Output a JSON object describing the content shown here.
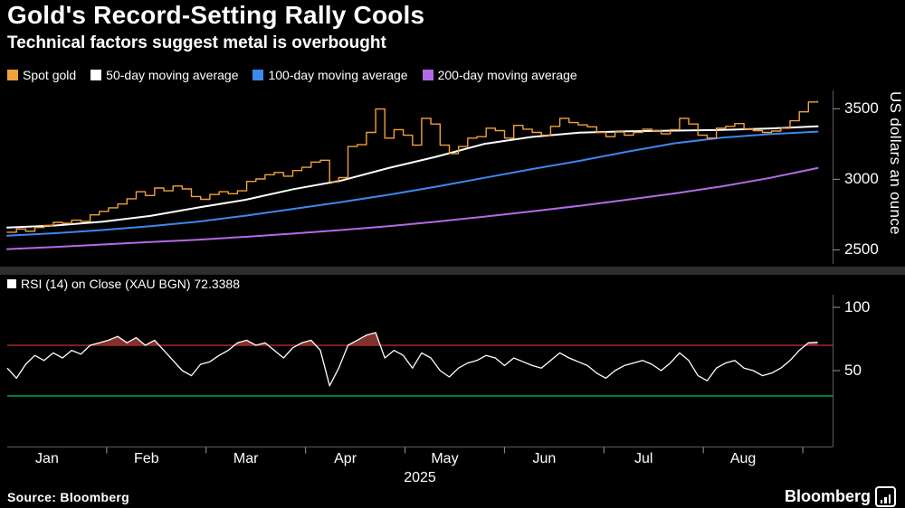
{
  "header": {
    "title": "Gold's Record-Setting Rally Cools",
    "subtitle": "Technical factors suggest metal is overbought"
  },
  "legend": {
    "items": [
      {
        "label": "Spot gold",
        "color": "#f2a13c"
      },
      {
        "label": "50-day moving average",
        "color": "#ffffff"
      },
      {
        "label": "100-day moving average",
        "color": "#3d87f0"
      },
      {
        "label": "200-day moving average",
        "color": "#b36ae8"
      }
    ]
  },
  "rsi_legend": {
    "marker_color": "#ffffff",
    "label": "RSI (14)  on Close (XAU BGN) 72.3388"
  },
  "footer": {
    "source": "Source: Bloomberg",
    "brand": "Bloomberg"
  },
  "chart_data": [
    {
      "type": "line",
      "title": "Gold price and moving averages",
      "ylabel": "US dollars an ounce",
      "xlabel": "2025",
      "xlim_months": [
        0,
        8.3
      ],
      "ylim": [
        2400,
        3630
      ],
      "yticks": [
        3500,
        3000,
        2500
      ],
      "xticklabels": [
        "Jan",
        "Feb",
        "Mar",
        "Apr",
        "May",
        "Jun",
        "Jul",
        "Aug"
      ],
      "grid": false,
      "legend_position": "top",
      "series": [
        {
          "name": "Spot gold",
          "color": "#f2a13c",
          "style": "step",
          "x_span": [
            0,
            8.15
          ],
          "values": [
            2625,
            2648,
            2632,
            2658,
            2672,
            2695,
            2688,
            2710,
            2702,
            2748,
            2772,
            2798,
            2825,
            2862,
            2912,
            2885,
            2938,
            2918,
            2952,
            2932,
            2878,
            2858,
            2892,
            2912,
            2898,
            2918,
            2985,
            3002,
            3032,
            3048,
            3022,
            3062,
            3085,
            3122,
            3135,
            2982,
            3012,
            3232,
            3245,
            3332,
            3498,
            3292,
            3352,
            3312,
            3242,
            3432,
            3392,
            3242,
            3182,
            3232,
            3292,
            3302,
            3362,
            3345,
            3292,
            3382,
            3355,
            3332,
            3312,
            3375,
            3432,
            3402,
            3385,
            3372,
            3332,
            3302,
            3335,
            3312,
            3332,
            3355,
            3345,
            3322,
            3352,
            3432,
            3392,
            3312,
            3292,
            3362,
            3375,
            3395,
            3355,
            3345,
            3332,
            3342,
            3362,
            3415,
            3478,
            3548,
            3552
          ]
        },
        {
          "name": "50-day moving average",
          "color": "#ffffff",
          "style": "line",
          "x_span": [
            0,
            8.15
          ],
          "values": [
            2658,
            2672,
            2700,
            2740,
            2800,
            2855,
            2930,
            2990,
            3080,
            3160,
            3250,
            3300,
            3330,
            3340,
            3345,
            3350,
            3360,
            3375
          ]
        },
        {
          "name": "100-day moving average",
          "color": "#3d87f0",
          "style": "line",
          "x_span": [
            0,
            8.15
          ],
          "values": [
            2600,
            2618,
            2640,
            2668,
            2700,
            2742,
            2790,
            2838,
            2890,
            2948,
            3010,
            3072,
            3130,
            3195,
            3255,
            3295,
            3320,
            3338
          ]
        },
        {
          "name": "200-day moving average",
          "color": "#b36ae8",
          "style": "line",
          "x_span": [
            0,
            8.15
          ],
          "values": [
            2505,
            2520,
            2538,
            2555,
            2572,
            2592,
            2615,
            2640,
            2668,
            2700,
            2735,
            2772,
            2812,
            2855,
            2900,
            2950,
            3010,
            3080
          ]
        }
      ]
    },
    {
      "type": "line",
      "title": "RSI (14) on Close (XAU BGN)",
      "last_value": 72.3388,
      "ylim": [
        0,
        100
      ],
      "ylim_padded": [
        -10,
        110
      ],
      "yticks": [
        100,
        50
      ],
      "grid": false,
      "overbought": {
        "level": 70,
        "line_color": "#a32a24",
        "fill_color": "rgba(216,84,72,0.6)"
      },
      "oversold": {
        "level": 30,
        "line_color": "#00a551"
      },
      "series": [
        {
          "name": "RSI",
          "color": "#ffffff",
          "x_span": [
            0,
            8.15
          ],
          "values": [
            52,
            44,
            55,
            62,
            58,
            64,
            60,
            66,
            63,
            70,
            72,
            74,
            77,
            72,
            76,
            70,
            74,
            66,
            58,
            50,
            46,
            55,
            57,
            62,
            66,
            72,
            74,
            70,
            72,
            66,
            60,
            68,
            72,
            74,
            66,
            38,
            52,
            70,
            74,
            78,
            80,
            60,
            66,
            62,
            52,
            64,
            60,
            50,
            45,
            52,
            56,
            58,
            62,
            60,
            54,
            60,
            57,
            54,
            52,
            58,
            64,
            60,
            57,
            54,
            48,
            44,
            50,
            54,
            56,
            58,
            55,
            50,
            56,
            64,
            58,
            46,
            42,
            52,
            56,
            58,
            52,
            50,
            46,
            48,
            52,
            58,
            66,
            72,
            72.34
          ]
        }
      ]
    }
  ]
}
